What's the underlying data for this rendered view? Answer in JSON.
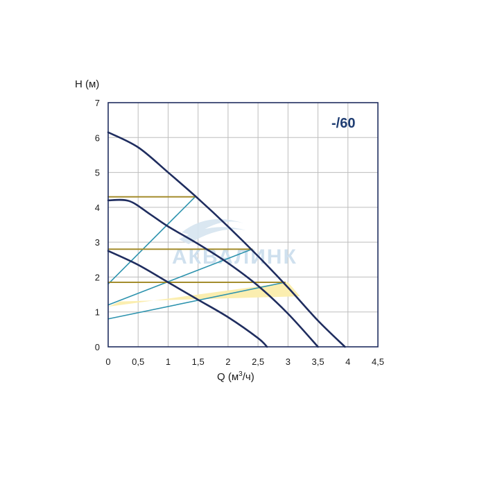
{
  "chart_data": {
    "type": "line",
    "badge": "-/60",
    "ylabel": "H (м)",
    "xlabel": "Q (м³/ч)",
    "xlim": [
      0,
      4.5
    ],
    "ylim": [
      0,
      7
    ],
    "xticks": [
      "0",
      "0,5",
      "1",
      "1,5",
      "2",
      "2,5",
      "3",
      "3,5",
      "4",
      "4,5"
    ],
    "yticks": [
      "0",
      "1",
      "2",
      "3",
      "4",
      "5",
      "6",
      "7"
    ],
    "grid": true,
    "watermark": "АКВАЛИНК",
    "colors": {
      "curve": "#1f2d5f",
      "control": "#2d93ae",
      "constant": "#a38c2c",
      "zone": "#fbeeb0",
      "grid": "#bdbdbd",
      "watermark": "#cfe0ee"
    },
    "series": [
      {
        "role": "speed-high",
        "points": [
          [
            0,
            6.15
          ],
          [
            0.5,
            5.72
          ],
          [
            1,
            5.0
          ],
          [
            1.5,
            4.25
          ],
          [
            2,
            3.45
          ],
          [
            2.5,
            2.6
          ],
          [
            3,
            1.7
          ],
          [
            3.5,
            0.75
          ],
          [
            3.95,
            0
          ]
        ]
      },
      {
        "role": "speed-medium",
        "points": [
          [
            0,
            4.2
          ],
          [
            0.35,
            4.18
          ],
          [
            0.7,
            3.8
          ],
          [
            1,
            3.45
          ],
          [
            1.5,
            2.95
          ],
          [
            2,
            2.4
          ],
          [
            2.5,
            1.75
          ],
          [
            3,
            0.95
          ],
          [
            3.5,
            0
          ]
        ]
      },
      {
        "role": "speed-low",
        "points": [
          [
            0,
            2.75
          ],
          [
            0.5,
            2.35
          ],
          [
            1,
            1.85
          ],
          [
            1.5,
            1.35
          ],
          [
            2,
            0.85
          ],
          [
            2.5,
            0.25
          ],
          [
            2.65,
            0
          ]
        ]
      },
      {
        "role": "proportional-pressure",
        "points": [
          [
            0,
            1.8
          ],
          [
            1.45,
            4.3
          ]
        ]
      },
      {
        "role": "proportional-pressure",
        "points": [
          [
            0,
            1.2
          ],
          [
            2.4,
            2.8
          ]
        ]
      },
      {
        "role": "proportional-pressure",
        "points": [
          [
            0,
            0.8
          ],
          [
            2.95,
            1.85
          ]
        ]
      },
      {
        "role": "constant-pressure",
        "points": [
          [
            0,
            4.3
          ],
          [
            1.45,
            4.3
          ]
        ]
      },
      {
        "role": "constant-pressure",
        "points": [
          [
            0,
            2.8
          ],
          [
            2.4,
            2.8
          ]
        ]
      },
      {
        "role": "constant-pressure",
        "points": [
          [
            0,
            1.85
          ],
          [
            2.95,
            1.85
          ]
        ]
      }
    ],
    "zone": [
      [
        0,
        1.15
      ],
      [
        3.0,
        1.85
      ],
      [
        3.2,
        1.45
      ],
      [
        0.2,
        1.3
      ]
    ]
  }
}
